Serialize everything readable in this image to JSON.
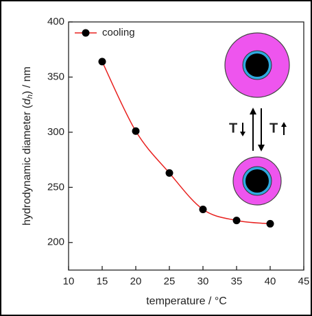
{
  "chart_data": {
    "type": "line",
    "xlabel": "temperature / °C",
    "ylabel": {
      "prefix": "hydrodynamic diameter (",
      "symbol": "d",
      "subscript": "h",
      "suffix": ") / nm"
    },
    "x": [
      15,
      20,
      25,
      30,
      35,
      40
    ],
    "series": [
      {
        "name": "cooling",
        "color": "#e8201e",
        "marker_color": "#000000",
        "values": [
          364,
          301,
          263,
          230,
          220,
          217
        ]
      }
    ],
    "xlim": [
      10,
      45
    ],
    "xticks": [
      10,
      15,
      20,
      25,
      30,
      35,
      40,
      45
    ],
    "ylim": [
      175,
      400
    ],
    "yticks": [
      200,
      250,
      300,
      350,
      400
    ],
    "legend": "upper left",
    "annotations": [
      "T",
      "T"
    ]
  }
}
